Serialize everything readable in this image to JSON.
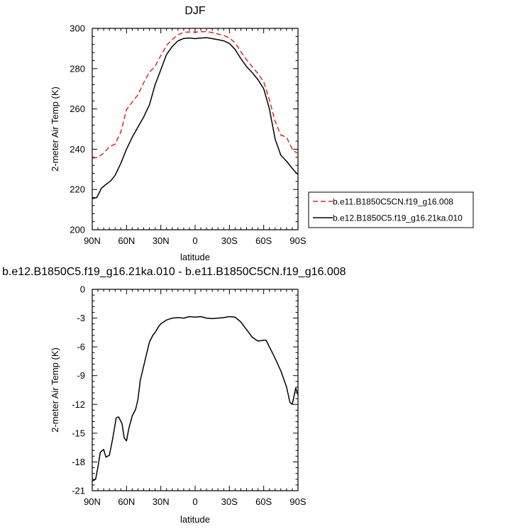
{
  "chart_data": [
    {
      "type": "line",
      "title": "DJF",
      "xlabel": "latitude",
      "ylabel": "2-meter Air Temp (K)",
      "xlim": [
        -90,
        90
      ],
      "ylim": [
        200,
        300
      ],
      "x_ticks": [
        -90,
        -60,
        -30,
        0,
        30,
        60,
        90
      ],
      "x_tick_labels": [
        "90N",
        "60N",
        "30N",
        "0",
        "30S",
        "60S",
        "90S"
      ],
      "y_ticks": [
        200,
        220,
        240,
        260,
        280,
        300
      ],
      "y_tick_labels": [
        "200",
        "220",
        "240",
        "260",
        "280",
        "300"
      ],
      "legend_position": "right",
      "series": [
        {
          "name": "b.e11.B1850C5CN.f19_g16.008",
          "color": "#e8211d",
          "dash": "dashed",
          "x": [
            -90,
            -85,
            -80,
            -75,
            -70,
            -65,
            -60,
            -55,
            -50,
            -45,
            -40,
            -35,
            -30,
            -25,
            -20,
            -15,
            -10,
            -5,
            0,
            5,
            10,
            15,
            20,
            25,
            30,
            35,
            40,
            45,
            50,
            55,
            60,
            65,
            70,
            75,
            80,
            85,
            88,
            90
          ],
          "values": [
            235.5,
            236,
            238,
            241.3,
            242.5,
            248.6,
            259.6,
            263.5,
            267,
            273,
            278.2,
            281.2,
            286.5,
            291.5,
            294.5,
            296.8,
            298,
            298.2,
            298.1,
            298.3,
            298.4,
            297.9,
            297.2,
            296.5,
            295.2,
            292.9,
            288.5,
            284.4,
            281,
            277.5,
            273.5,
            264.5,
            253.8,
            247,
            246,
            240,
            238.5,
            238
          ]
        },
        {
          "name": "b.e12.B1850C5.f19_g16.21ka.010",
          "color": "#000000",
          "dash": "solid",
          "x": [
            -90,
            -86,
            -82,
            -78,
            -74,
            -70,
            -65,
            -60,
            -55,
            -50,
            -45,
            -40,
            -35,
            -30,
            -25,
            -20,
            -15,
            -10,
            -5,
            0,
            5,
            10,
            15,
            20,
            25,
            30,
            35,
            40,
            45,
            50,
            55,
            60,
            65,
            70,
            75,
            80,
            85,
            88,
            90
          ],
          "values": [
            215.5,
            216,
            220.6,
            222.5,
            224.2,
            227,
            233,
            240,
            246,
            251,
            256,
            262,
            272,
            279.5,
            287,
            291,
            293.8,
            295,
            295.2,
            294.9,
            295.2,
            295.4,
            294.9,
            294.4,
            293.8,
            292.5,
            289.5,
            285,
            281,
            278,
            274.5,
            270,
            260,
            245,
            237,
            234,
            230.5,
            228.5,
            227.5
          ]
        }
      ]
    },
    {
      "type": "line",
      "title": "b.e12.B1850C5.f19_g16.21ka.010 - b.e11.B1850C5CN.f19_g16.008",
      "xlabel": "latitude",
      "ylabel": "2-meter Air Temp (K)",
      "xlim": [
        -90,
        90
      ],
      "ylim": [
        -21,
        0
      ],
      "x_ticks": [
        -90,
        -60,
        -30,
        0,
        30,
        60,
        90
      ],
      "x_tick_labels": [
        "90N",
        "60N",
        "30N",
        "0",
        "30S",
        "60S",
        "90S"
      ],
      "y_ticks": [
        -21,
        -18,
        -15,
        -12,
        -9,
        -6,
        -3,
        0
      ],
      "y_tick_labels": [
        "-21",
        "-18",
        "-15",
        "-12",
        "-9",
        "-6",
        "-3",
        "0"
      ],
      "series": [
        {
          "color": "#000000",
          "dash": "solid",
          "x": [
            -90,
            -87,
            -85,
            -83,
            -80,
            -78,
            -75,
            -72,
            -69,
            -67,
            -64,
            -62,
            -60,
            -58,
            -55,
            -52,
            -50,
            -48,
            -45,
            -42,
            -40,
            -37,
            -35,
            -32,
            -30,
            -25,
            -20,
            -15,
            -10,
            -5,
            0,
            5,
            10,
            15,
            20,
            25,
            30,
            35,
            40,
            45,
            50,
            55,
            60,
            62,
            65,
            70,
            75,
            80,
            83,
            85,
            88,
            90
          ],
          "values": [
            -20,
            -19.8,
            -18.5,
            -17,
            -16.7,
            -17.5,
            -17.3,
            -15.5,
            -13.4,
            -13.3,
            -14,
            -15.5,
            -15.8,
            -14.5,
            -13.2,
            -12.5,
            -11.5,
            -9.5,
            -8,
            -6.5,
            -5.5,
            -4.8,
            -4.5,
            -3.9,
            -3.6,
            -3.2,
            -3,
            -2.95,
            -3,
            -2.85,
            -2.9,
            -2.85,
            -3,
            -3.05,
            -3,
            -2.95,
            -2.85,
            -2.9,
            -3.4,
            -4.2,
            -5,
            -5.4,
            -5.3,
            -5.3,
            -6,
            -7.2,
            -8.5,
            -10.2,
            -11.8,
            -12,
            -10.3,
            -11
          ]
        }
      ]
    }
  ]
}
